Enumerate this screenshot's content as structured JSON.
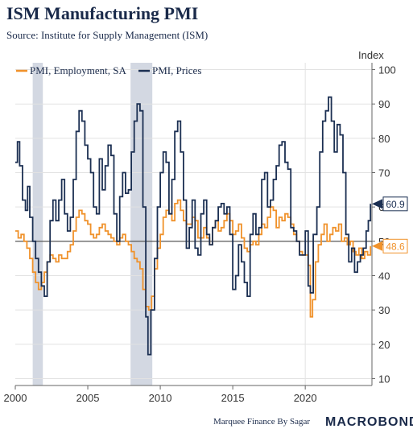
{
  "header": {
    "title": "ISM Manufacturing PMI",
    "subtitle": "Source: Institute for Supply Management (ISM)"
  },
  "footer": {
    "credit": "Marquee Finance By Sagar",
    "brand": "MACROBOND"
  },
  "colors": {
    "employment": "#f0922b",
    "prices": "#1b2f52",
    "recession": "#d3d8e2",
    "reference_line": "#333333"
  },
  "chart_data": {
    "type": "line",
    "ylabel": "Index",
    "ylim": [
      8,
      102
    ],
    "xlim": [
      2000.0,
      2024.6
    ],
    "yticks": [
      10,
      20,
      30,
      40,
      50,
      60,
      70,
      80,
      90,
      100
    ],
    "xticks": [
      2000,
      2005,
      2010,
      2015,
      2020
    ],
    "reference_line": 50,
    "legend_position": "top-left",
    "recessions": [
      [
        2001.2,
        2001.9
      ],
      [
        2007.95,
        2009.45
      ]
    ],
    "series": [
      {
        "name": "PMI, Employment, SA",
        "last_value": "48.6",
        "points": [
          [
            2000.0,
            53
          ],
          [
            2000.2,
            51
          ],
          [
            2000.4,
            52
          ],
          [
            2000.6,
            50
          ],
          [
            2000.8,
            48
          ],
          [
            2001.0,
            45
          ],
          [
            2001.2,
            41
          ],
          [
            2001.4,
            38
          ],
          [
            2001.6,
            36
          ],
          [
            2001.8,
            38
          ],
          [
            2002.0,
            41
          ],
          [
            2002.2,
            44
          ],
          [
            2002.4,
            46
          ],
          [
            2002.6,
            45
          ],
          [
            2002.8,
            44
          ],
          [
            2003.0,
            46
          ],
          [
            2003.2,
            45
          ],
          [
            2003.4,
            45
          ],
          [
            2003.6,
            47
          ],
          [
            2003.8,
            49
          ],
          [
            2004.0,
            53
          ],
          [
            2004.2,
            57
          ],
          [
            2004.4,
            59
          ],
          [
            2004.6,
            58
          ],
          [
            2004.8,
            56
          ],
          [
            2005.0,
            55
          ],
          [
            2005.2,
            52
          ],
          [
            2005.4,
            51
          ],
          [
            2005.6,
            52
          ],
          [
            2005.8,
            54
          ],
          [
            2006.0,
            55
          ],
          [
            2006.2,
            53
          ],
          [
            2006.4,
            52
          ],
          [
            2006.6,
            51
          ],
          [
            2006.8,
            50
          ],
          [
            2007.0,
            49
          ],
          [
            2007.2,
            51
          ],
          [
            2007.4,
            52
          ],
          [
            2007.6,
            50
          ],
          [
            2007.8,
            49
          ],
          [
            2008.0,
            47
          ],
          [
            2008.2,
            45
          ],
          [
            2008.4,
            44
          ],
          [
            2008.6,
            42
          ],
          [
            2008.8,
            36
          ],
          [
            2009.0,
            31
          ],
          [
            2009.2,
            30
          ],
          [
            2009.4,
            34
          ],
          [
            2009.6,
            42
          ],
          [
            2009.8,
            48
          ],
          [
            2010.0,
            52
          ],
          [
            2010.2,
            57
          ],
          [
            2010.4,
            59
          ],
          [
            2010.6,
            58
          ],
          [
            2010.8,
            56
          ],
          [
            2011.0,
            61
          ],
          [
            2011.2,
            62
          ],
          [
            2011.4,
            59
          ],
          [
            2011.6,
            56
          ],
          [
            2011.8,
            55
          ],
          [
            2012.0,
            55
          ],
          [
            2012.2,
            57
          ],
          [
            2012.4,
            56
          ],
          [
            2012.6,
            51
          ],
          [
            2012.8,
            51
          ],
          [
            2013.0,
            54
          ],
          [
            2013.2,
            51
          ],
          [
            2013.4,
            49
          ],
          [
            2013.6,
            54
          ],
          [
            2013.8,
            56
          ],
          [
            2014.0,
            53
          ],
          [
            2014.2,
            54
          ],
          [
            2014.4,
            56
          ],
          [
            2014.6,
            58
          ],
          [
            2014.8,
            56
          ],
          [
            2015.0,
            52
          ],
          [
            2015.2,
            53
          ],
          [
            2015.4,
            55
          ],
          [
            2015.6,
            51
          ],
          [
            2015.8,
            48
          ],
          [
            2016.0,
            47
          ],
          [
            2016.2,
            49
          ],
          [
            2016.4,
            50
          ],
          [
            2016.6,
            49
          ],
          [
            2016.8,
            52
          ],
          [
            2017.0,
            55
          ],
          [
            2017.2,
            54
          ],
          [
            2017.4,
            57
          ],
          [
            2017.6,
            60
          ],
          [
            2017.8,
            59
          ],
          [
            2018.0,
            54
          ],
          [
            2018.2,
            57
          ],
          [
            2018.4,
            56
          ],
          [
            2018.6,
            58
          ],
          [
            2018.8,
            57
          ],
          [
            2019.0,
            55
          ],
          [
            2019.2,
            52
          ],
          [
            2019.4,
            50
          ],
          [
            2019.6,
            47
          ],
          [
            2019.8,
            46
          ],
          [
            2020.0,
            46
          ],
          [
            2020.2,
            43
          ],
          [
            2020.35,
            28
          ],
          [
            2020.5,
            33
          ],
          [
            2020.7,
            44
          ],
          [
            2020.9,
            49
          ],
          [
            2021.1,
            52
          ],
          [
            2021.3,
            55
          ],
          [
            2021.5,
            50
          ],
          [
            2021.7,
            52
          ],
          [
            2021.9,
            54
          ],
          [
            2022.1,
            53
          ],
          [
            2022.3,
            55
          ],
          [
            2022.5,
            50
          ],
          [
            2022.7,
            51
          ],
          [
            2022.9,
            49
          ],
          [
            2023.1,
            50
          ],
          [
            2023.3,
            47
          ],
          [
            2023.5,
            46
          ],
          [
            2023.7,
            48
          ],
          [
            2023.9,
            45
          ],
          [
            2024.1,
            47
          ],
          [
            2024.3,
            46
          ],
          [
            2024.5,
            48.6
          ]
        ]
      },
      {
        "name": "PMI, Prices",
        "last_value": "60.9",
        "points": [
          [
            2000.0,
            73
          ],
          [
            2000.15,
            79
          ],
          [
            2000.3,
            72
          ],
          [
            2000.5,
            62
          ],
          [
            2000.7,
            59
          ],
          [
            2000.85,
            66
          ],
          [
            2001.0,
            57
          ],
          [
            2001.2,
            50
          ],
          [
            2001.4,
            45
          ],
          [
            2001.6,
            41
          ],
          [
            2001.8,
            37
          ],
          [
            2002.0,
            34
          ],
          [
            2002.2,
            44
          ],
          [
            2002.4,
            56
          ],
          [
            2002.6,
            62
          ],
          [
            2002.8,
            56
          ],
          [
            2003.0,
            62
          ],
          [
            2003.2,
            68
          ],
          [
            2003.4,
            58
          ],
          [
            2003.6,
            53
          ],
          [
            2003.8,
            57
          ],
          [
            2004.0,
            68
          ],
          [
            2004.2,
            82
          ],
          [
            2004.4,
            88
          ],
          [
            2004.6,
            85
          ],
          [
            2004.8,
            78
          ],
          [
            2005.0,
            74
          ],
          [
            2005.2,
            70
          ],
          [
            2005.4,
            60
          ],
          [
            2005.6,
            58
          ],
          [
            2005.8,
            74
          ],
          [
            2006.0,
            65
          ],
          [
            2006.2,
            72
          ],
          [
            2006.4,
            78
          ],
          [
            2006.6,
            75
          ],
          [
            2006.8,
            58
          ],
          [
            2007.0,
            50
          ],
          [
            2007.2,
            63
          ],
          [
            2007.4,
            70
          ],
          [
            2007.6,
            64
          ],
          [
            2007.8,
            65
          ],
          [
            2008.0,
            76
          ],
          [
            2008.2,
            85
          ],
          [
            2008.4,
            90
          ],
          [
            2008.6,
            88
          ],
          [
            2008.8,
            60
          ],
          [
            2009.0,
            28
          ],
          [
            2009.15,
            17
          ],
          [
            2009.35,
            30
          ],
          [
            2009.6,
            45
          ],
          [
            2009.8,
            60
          ],
          [
            2010.0,
            70
          ],
          [
            2010.2,
            76
          ],
          [
            2010.4,
            73
          ],
          [
            2010.6,
            58
          ],
          [
            2010.8,
            68
          ],
          [
            2011.0,
            82
          ],
          [
            2011.2,
            85
          ],
          [
            2011.4,
            76
          ],
          [
            2011.6,
            62
          ],
          [
            2011.8,
            48
          ],
          [
            2012.0,
            54
          ],
          [
            2012.2,
            62
          ],
          [
            2012.4,
            48
          ],
          [
            2012.6,
            46
          ],
          [
            2012.8,
            58
          ],
          [
            2013.0,
            62
          ],
          [
            2013.2,
            52
          ],
          [
            2013.4,
            49
          ],
          [
            2013.6,
            54
          ],
          [
            2013.8,
            56
          ],
          [
            2014.0,
            60
          ],
          [
            2014.2,
            61
          ],
          [
            2014.4,
            58
          ],
          [
            2014.6,
            60
          ],
          [
            2014.8,
            52
          ],
          [
            2015.0,
            36
          ],
          [
            2015.2,
            40
          ],
          [
            2015.4,
            49
          ],
          [
            2015.6,
            44
          ],
          [
            2015.8,
            38
          ],
          [
            2016.0,
            34
          ],
          [
            2016.2,
            52
          ],
          [
            2016.4,
            58
          ],
          [
            2016.6,
            52
          ],
          [
            2016.8,
            54
          ],
          [
            2017.0,
            68
          ],
          [
            2017.2,
            70
          ],
          [
            2017.4,
            60
          ],
          [
            2017.6,
            62
          ],
          [
            2017.8,
            68
          ],
          [
            2018.0,
            72
          ],
          [
            2018.2,
            78
          ],
          [
            2018.4,
            79
          ],
          [
            2018.6,
            73
          ],
          [
            2018.8,
            71
          ],
          [
            2019.0,
            54
          ],
          [
            2019.2,
            53
          ],
          [
            2019.4,
            50
          ],
          [
            2019.6,
            46
          ],
          [
            2019.8,
            46
          ],
          [
            2020.0,
            53
          ],
          [
            2020.2,
            37
          ],
          [
            2020.35,
            35
          ],
          [
            2020.55,
            52
          ],
          [
            2020.8,
            60
          ],
          [
            2021.0,
            76
          ],
          [
            2021.2,
            85
          ],
          [
            2021.4,
            88
          ],
          [
            2021.6,
            92
          ],
          [
            2021.8,
            85
          ],
          [
            2022.0,
            76
          ],
          [
            2022.2,
            84
          ],
          [
            2022.4,
            81
          ],
          [
            2022.6,
            70
          ],
          [
            2022.8,
            52
          ],
          [
            2023.0,
            44
          ],
          [
            2023.2,
            48
          ],
          [
            2023.4,
            41
          ],
          [
            2023.6,
            44
          ],
          [
            2023.8,
            46
          ],
          [
            2024.0,
            48
          ],
          [
            2024.2,
            53
          ],
          [
            2024.35,
            56
          ],
          [
            2024.5,
            60.9
          ]
        ]
      }
    ]
  }
}
